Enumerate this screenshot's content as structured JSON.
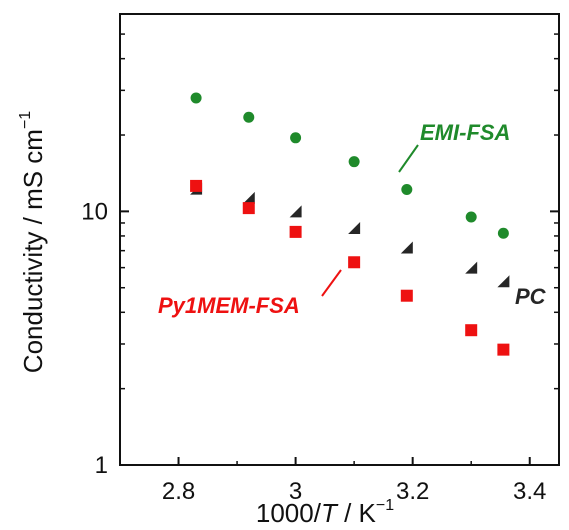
{
  "chart_data": {
    "type": "scatter",
    "xlabel": {
      "prefix": "1000/",
      "variable": "T",
      "suffix": " / K",
      "superscript": "−1"
    },
    "ylabel": {
      "text": "Conductivity / mS cm",
      "superscript": "−1"
    },
    "xlim": [
      2.7,
      3.45
    ],
    "ylim": [
      1,
      60
    ],
    "yscale": "log",
    "x_ticks": [
      {
        "value": 2.8,
        "label": "2.8"
      },
      {
        "value": 3.0,
        "label": "3"
      },
      {
        "value": 3.2,
        "label": "3.2"
      },
      {
        "value": 3.4,
        "label": "3.4"
      }
    ],
    "y_ticks": [
      {
        "value": 1,
        "label": "1"
      },
      {
        "value": 10,
        "label": "10"
      }
    ],
    "grid": false,
    "legend": "none",
    "series": [
      {
        "name": "EMI-FSA",
        "marker": "circle",
        "color": "#1f8a2b",
        "x": [
          2.83,
          2.92,
          3.0,
          3.1,
          3.19,
          3.3,
          3.355
        ],
        "y": [
          28.0,
          23.5,
          19.5,
          15.7,
          12.2,
          9.5,
          8.2
        ]
      },
      {
        "name": "PC",
        "marker": "triangle",
        "color": "#262626",
        "x": [
          2.83,
          2.92,
          3.0,
          3.1,
          3.19,
          3.3,
          3.355
        ],
        "y": [
          12.3,
          11.3,
          10.0,
          8.6,
          7.2,
          6.0,
          5.3
        ]
      },
      {
        "name": "Py1MEM-FSA",
        "marker": "square",
        "color": "#ee1111",
        "x": [
          2.83,
          2.92,
          3.0,
          3.1,
          3.19,
          3.3,
          3.355
        ],
        "y": [
          12.6,
          10.3,
          8.3,
          6.3,
          4.65,
          3.4,
          2.85
        ]
      }
    ]
  }
}
